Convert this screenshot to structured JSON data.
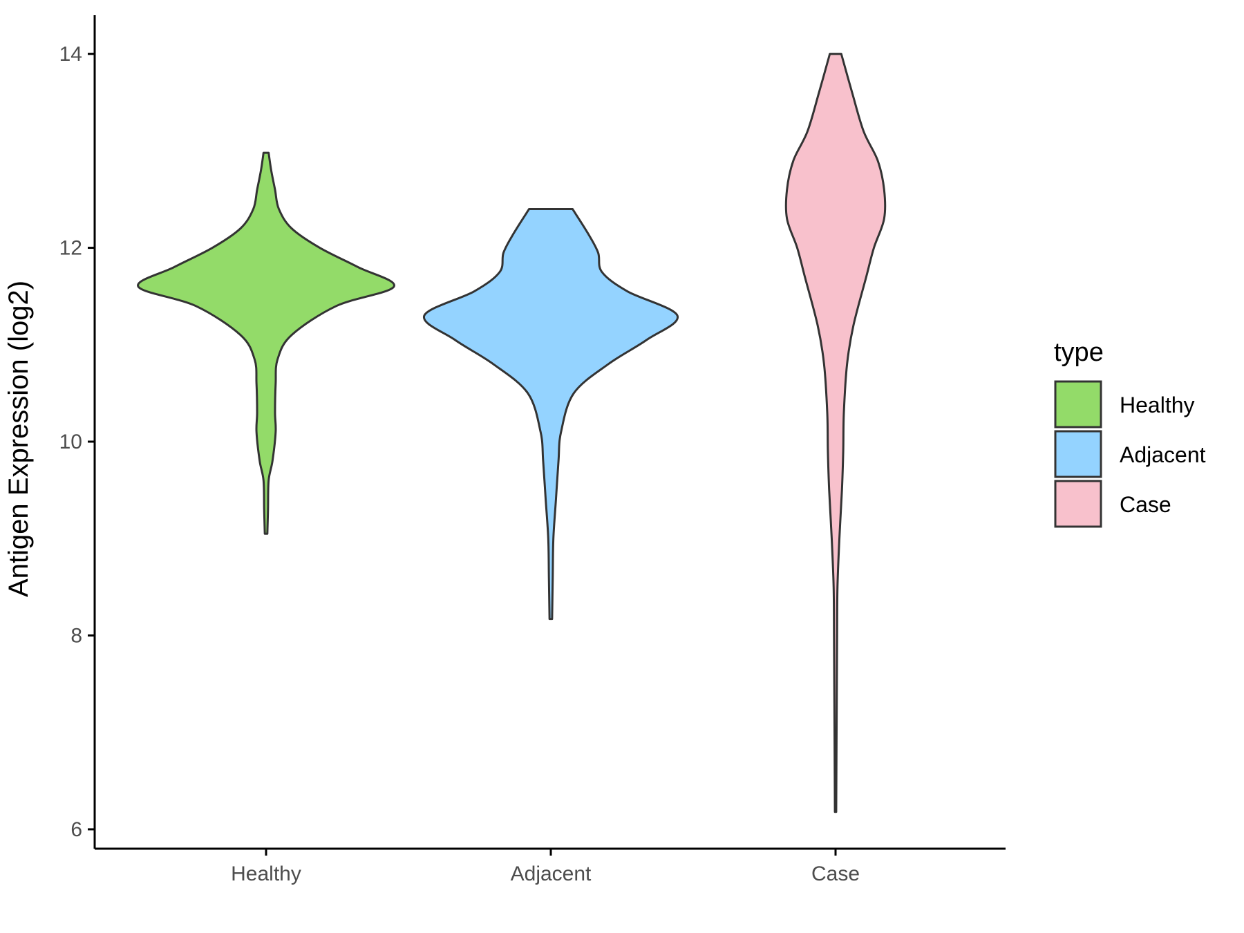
{
  "chart_data": {
    "type": "violin",
    "title": "",
    "xlabel": "",
    "ylabel": "Antigen Expression (log2)",
    "ylim": [
      5.8,
      14.4
    ],
    "yticks": [
      6,
      8,
      10,
      12,
      14
    ],
    "categories": [
      "Healthy",
      "Adjacent",
      "Case"
    ],
    "grid": false,
    "legend": {
      "title": "type",
      "placement": "right",
      "entries": [
        "Healthy",
        "Adjacent",
        "Case"
      ]
    },
    "colors": {
      "Healthy": "#93DB69",
      "Adjacent": "#94D3FF",
      "Case": "#F8C1CC",
      "outline": "#333333"
    },
    "series": [
      {
        "category": "Healthy",
        "range": [
          9.05,
          12.98
        ],
        "density_profile": [
          [
            9.05,
            0.01
          ],
          [
            9.3,
            0.015
          ],
          [
            9.6,
            0.02
          ],
          [
            9.8,
            0.05
          ],
          [
            10.1,
            0.075
          ],
          [
            10.3,
            0.07
          ],
          [
            10.6,
            0.075
          ],
          [
            10.85,
            0.09
          ],
          [
            11.1,
            0.2
          ],
          [
            11.4,
            0.55
          ],
          [
            11.6,
            1.0
          ],
          [
            11.8,
            0.72
          ],
          [
            12.0,
            0.42
          ],
          [
            12.2,
            0.2
          ],
          [
            12.4,
            0.1
          ],
          [
            12.6,
            0.07
          ],
          [
            12.8,
            0.04
          ],
          [
            12.98,
            0.02
          ]
        ]
      },
      {
        "category": "Adjacent",
        "range": [
          8.17,
          12.4
        ],
        "density_profile": [
          [
            8.17,
            0.01
          ],
          [
            8.6,
            0.015
          ],
          [
            9.0,
            0.02
          ],
          [
            9.4,
            0.04
          ],
          [
            9.8,
            0.06
          ],
          [
            10.1,
            0.08
          ],
          [
            10.5,
            0.18
          ],
          [
            10.8,
            0.45
          ],
          [
            11.05,
            0.75
          ],
          [
            11.3,
            0.99
          ],
          [
            11.55,
            0.6
          ],
          [
            11.75,
            0.4
          ],
          [
            11.95,
            0.37
          ],
          [
            12.15,
            0.29
          ],
          [
            12.4,
            0.17
          ]
        ]
      },
      {
        "category": "Case",
        "range": [
          6.18,
          14.0
        ],
        "density_profile": [
          [
            6.18,
            0.005
          ],
          [
            7.0,
            0.008
          ],
          [
            7.5,
            0.01
          ],
          [
            8.0,
            0.012
          ],
          [
            8.5,
            0.015
          ],
          [
            9.0,
            0.03
          ],
          [
            9.5,
            0.05
          ],
          [
            9.9,
            0.06
          ],
          [
            10.3,
            0.065
          ],
          [
            10.8,
            0.09
          ],
          [
            11.2,
            0.14
          ],
          [
            11.7,
            0.24
          ],
          [
            12.0,
            0.3
          ],
          [
            12.3,
            0.38
          ],
          [
            12.6,
            0.38
          ],
          [
            12.9,
            0.33
          ],
          [
            13.2,
            0.22
          ],
          [
            13.6,
            0.13
          ],
          [
            14.0,
            0.045
          ]
        ]
      }
    ]
  }
}
